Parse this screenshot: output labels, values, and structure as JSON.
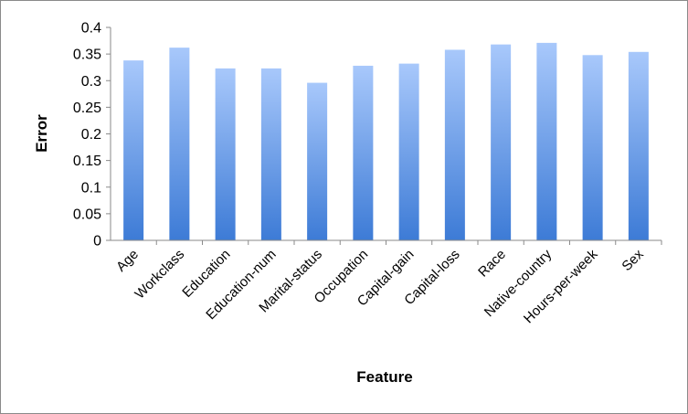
{
  "chart_data": {
    "type": "bar",
    "title": "",
    "xlabel": "Feature",
    "ylabel": "Error",
    "ylim": [
      0,
      0.4
    ],
    "yticks": [
      0,
      0.05,
      0.1,
      0.15,
      0.2,
      0.25,
      0.3,
      0.35,
      0.4
    ],
    "ytick_labels": [
      "0",
      "0.05",
      "0.1",
      "0.15",
      "0.2",
      "0.25",
      "0.3",
      "0.35",
      "0.4"
    ],
    "grid": false,
    "legend": "none",
    "categories": [
      "Age",
      "Workclass",
      "Education",
      "Education-num",
      "Marital-status",
      "Occupation",
      "Capital-gain",
      "Capital-loss",
      "Race",
      "Native-country",
      "Hours-per-week",
      "Sex"
    ],
    "values": [
      0.338,
      0.362,
      0.323,
      0.323,
      0.296,
      0.328,
      0.332,
      0.358,
      0.368,
      0.371,
      0.348,
      0.354
    ],
    "bar_color_top": "#a8c8fb",
    "bar_color_bottom": "#3d7bd6"
  }
}
